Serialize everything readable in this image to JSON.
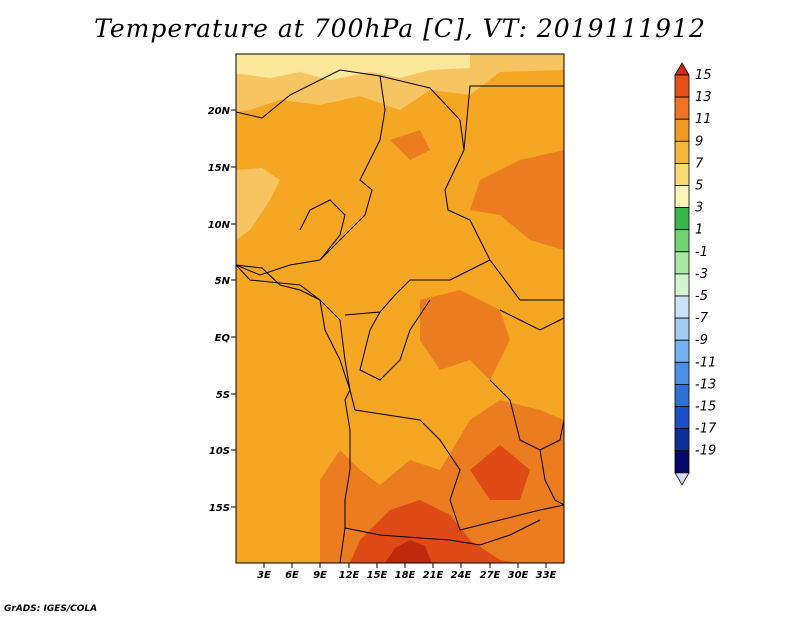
{
  "title": "Temperature at 700hPa [C], VT: 2019111912",
  "credit": "GrADS: IGES/COLA",
  "map": {
    "lon_labels": [
      "3E",
      "6E",
      "9E",
      "12E",
      "15E",
      "18E",
      "21E",
      "24E",
      "27E",
      "30E",
      "33E"
    ],
    "lat_labels": [
      "20N",
      "15N",
      "10N",
      "5N",
      "EQ",
      "5S",
      "10S",
      "15S"
    ],
    "colors": {
      "c7": "#f7c462",
      "c9": "#f5a623",
      "c11": "#ec7c20",
      "c13": "#e04a16",
      "c15": "#c02a0c",
      "c5": "#fde79a",
      "border": "#000000"
    }
  },
  "colorbar": {
    "labels": [
      "15",
      "13",
      "11",
      "9",
      "7",
      "5",
      "3",
      "1",
      "-1",
      "-3",
      "-5",
      "-7",
      "-9",
      "-11",
      "-13",
      "-15",
      "-17",
      "-19"
    ],
    "colors": [
      "#d02a10",
      "#e8501a",
      "#ef7322",
      "#f39a25",
      "#f6b73a",
      "#fbd871",
      "#fdf4b3",
      "#39b54a",
      "#73d473",
      "#a8e8a0",
      "#d2f3d0",
      "#c8e2f8",
      "#a2ccf4",
      "#75b0ee",
      "#4a90e6",
      "#2e6fd8",
      "#1b4fc6",
      "#0f2f98",
      "#050a6a",
      "#d9d9f8"
    ]
  }
}
